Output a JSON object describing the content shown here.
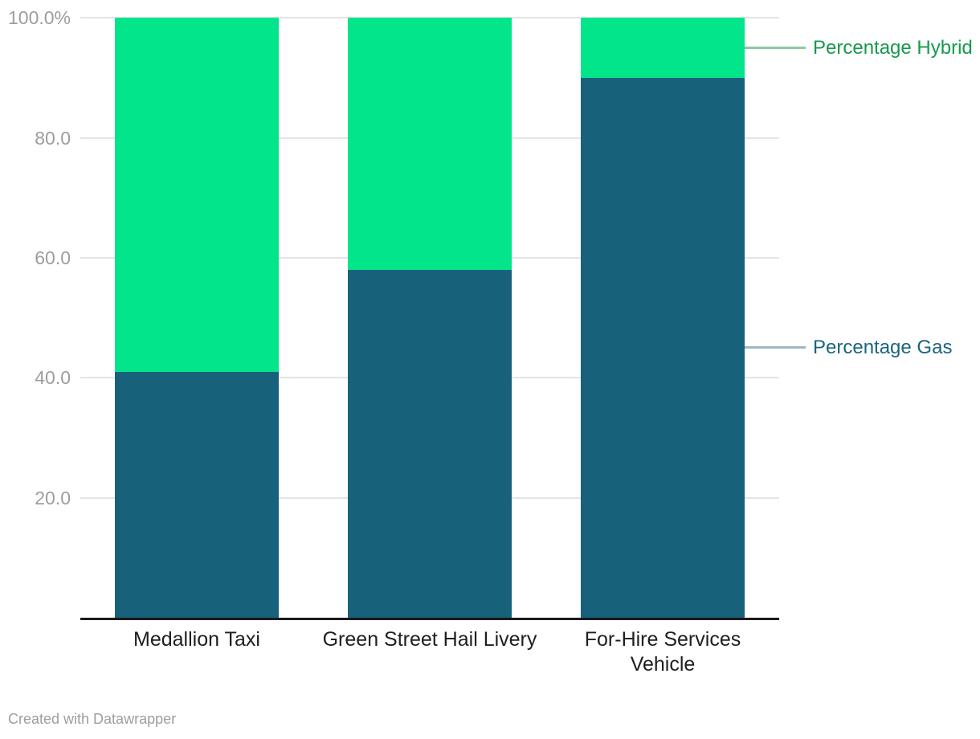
{
  "chart_data": {
    "type": "bar",
    "stacked": true,
    "orientation": "vertical",
    "categories": [
      "Medallion Taxi",
      "Green Street Hail Livery",
      "For-Hire Services\nVehicle"
    ],
    "series": [
      {
        "name": "Percentage Gas",
        "values": [
          41,
          58,
          90
        ],
        "bar_color": "#17617b",
        "label_color": "#1b6480",
        "connector_color": "#9db8c2"
      },
      {
        "name": "Percentage Hybrid",
        "values": [
          59,
          42,
          10
        ],
        "bar_color": "#03e58b",
        "label_color": "#16994e",
        "connector_color": "#8cc9a3"
      }
    ],
    "y_axis": {
      "min": 0,
      "max": 100,
      "unit": "%",
      "grid": true,
      "ticks": [
        {
          "value": 20,
          "label": "20.0"
        },
        {
          "value": 40,
          "label": "40.0"
        },
        {
          "value": 60,
          "label": "60.0"
        },
        {
          "value": 80,
          "label": "80.0"
        },
        {
          "value": 100,
          "label": "100.0%"
        }
      ]
    },
    "legend_position": "direct-labels-right",
    "title": "",
    "xlabel": "",
    "ylabel": ""
  },
  "footer": {
    "credit": "Created with Datawrapper"
  },
  "colors": {
    "background": "#ffffff",
    "grid": "#e4e4e4",
    "axis": "#1a1a1a",
    "tick_text": "#9d9d9d",
    "category_text": "#202020",
    "footer_text": "#9e9e9e"
  }
}
